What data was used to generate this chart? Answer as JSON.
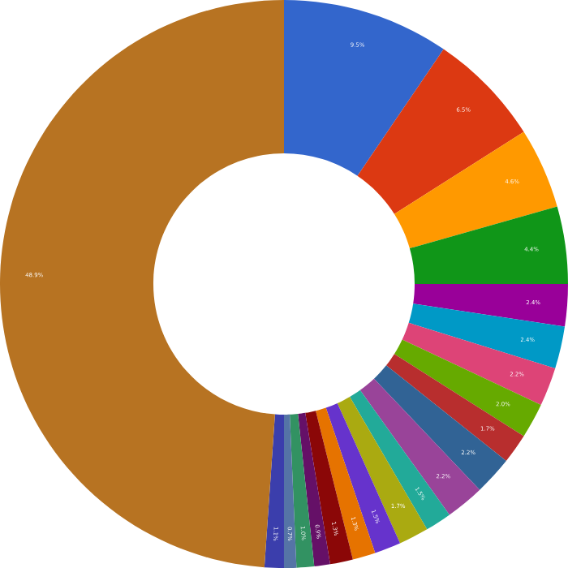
{
  "chart_data": {
    "type": "donut",
    "categories": [
      null,
      null,
      null,
      null,
      null,
      null,
      null,
      null,
      null,
      null,
      null,
      null,
      null,
      null,
      null,
      null,
      null,
      null,
      null,
      null,
      null
    ],
    "values": [
      9.5,
      6.5,
      4.6,
      4.4,
      2.4,
      2.4,
      2.2,
      2.0,
      1.7,
      2.2,
      2.2,
      1.5,
      1.7,
      1.5,
      1.3,
      1.3,
      0.9,
      1.0,
      0.7,
      1.1,
      48.9
    ],
    "colors": [
      "#3366cc",
      "#dc3912",
      "#ff9900",
      "#109618",
      "#990099",
      "#0099c6",
      "#dd4477",
      "#66aa00",
      "#b82e2e",
      "#316395",
      "#994499",
      "#22aa99",
      "#aaaa11",
      "#6633cc",
      "#e67300",
      "#8b0707",
      "#651067",
      "#329262",
      "#5574a6",
      "#3b3eac",
      "#b77322"
    ],
    "value_labels": [
      "9.5%",
      "6.5%",
      "4.6%",
      "4.4%",
      "2.4%",
      "2.4%",
      "2.2%",
      "2.0%",
      "1.7%",
      "2.2%",
      "2.2%",
      "1.5%",
      "1.7%",
      "1.5%",
      "1.3%",
      "1.3%",
      "0.9%",
      "1.0%",
      "0.7%",
      "1.1%",
      "48.9%"
    ]
  }
}
